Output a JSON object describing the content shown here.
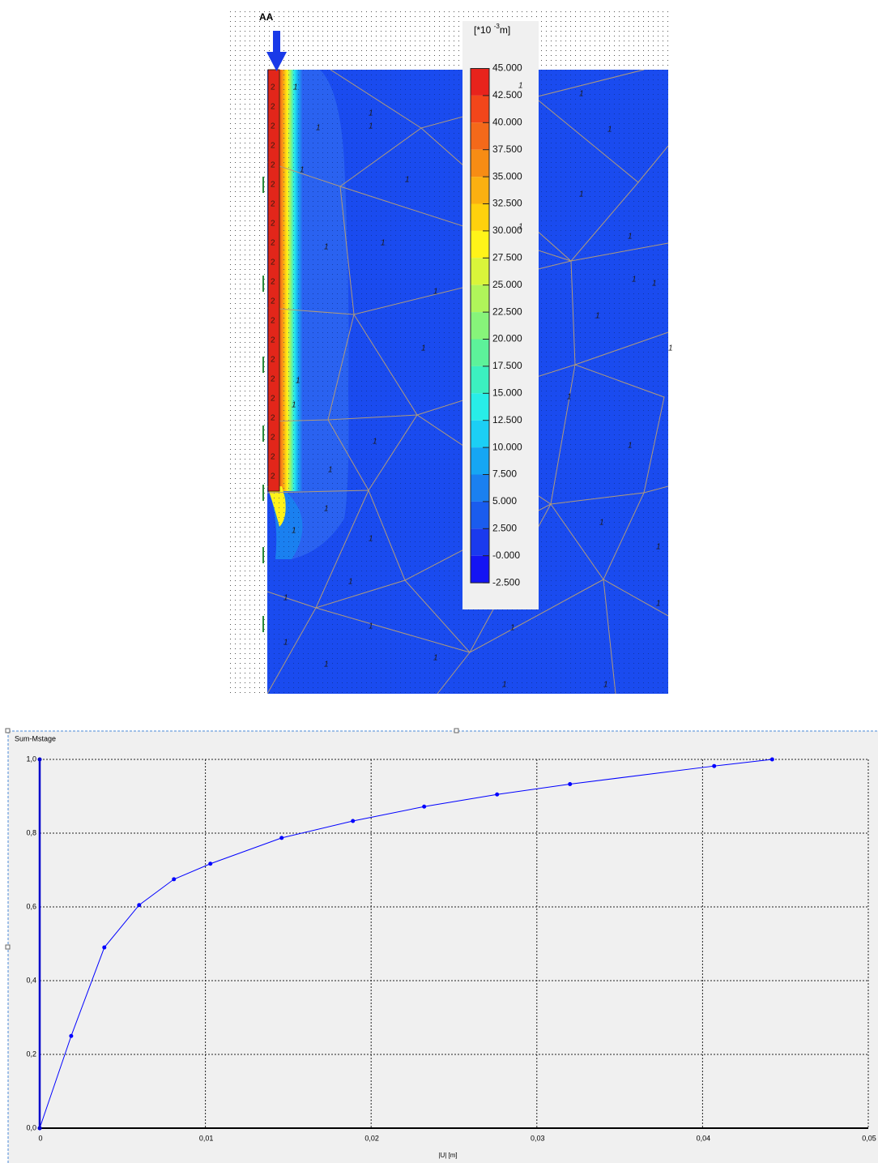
{
  "model_view": {
    "section_label": "AA",
    "soil_label": "1",
    "plate_label": "2",
    "legend": {
      "unit_prefix": "[*10",
      "unit_exponent": "-3",
      "unit_suffix": "m]",
      "levels": [
        {
          "value": 45,
          "label": "45.000"
        },
        {
          "value": 42.5,
          "label": "42.500"
        },
        {
          "value": 40,
          "label": "40.000"
        },
        {
          "value": 37.5,
          "label": "37.500"
        },
        {
          "value": 35,
          "label": "35.000"
        },
        {
          "value": 32.5,
          "label": "32.500"
        },
        {
          "value": 30,
          "label": "30.000"
        },
        {
          "value": 27.5,
          "label": "27.500"
        },
        {
          "value": 25,
          "label": "25.000"
        },
        {
          "value": 22.5,
          "label": "22.500"
        },
        {
          "value": 20,
          "label": "20.000"
        },
        {
          "value": 17.5,
          "label": "17.500"
        },
        {
          "value": 15,
          "label": "15.000"
        },
        {
          "value": 12.5,
          "label": "12.500"
        },
        {
          "value": 10,
          "label": "10.000"
        },
        {
          "value": 7.5,
          "label": "7.500"
        },
        {
          "value": 5,
          "label": "5.000"
        },
        {
          "value": 2.5,
          "label": "2.500"
        },
        {
          "value": 0,
          "label": "-0.000"
        },
        {
          "value": -2.5,
          "label": "-2.500"
        }
      ],
      "colors": [
        "#e8231c",
        "#f2461a",
        "#f4691a",
        "#f78c14",
        "#fbb011",
        "#ffd10d",
        "#fff319",
        "#d9f53a",
        "#b0f55a",
        "#87f47a",
        "#5df29a",
        "#3cf0c0",
        "#28eee8",
        "#1ccff5",
        "#16a6f3",
        "#1a80f0",
        "#1a5cee",
        "#1a3aee",
        "#1414f4"
      ]
    }
  },
  "chart_data": {
    "type": "line",
    "title": "Sum-Mstage",
    "x_label": "|U| [m]",
    "xlim": [
      0,
      0.05
    ],
    "ylim": [
      0,
      1
    ],
    "xticks": [
      {
        "value": 0,
        "label": "0"
      },
      {
        "value": 0.01,
        "label": "0,01"
      },
      {
        "value": 0.02,
        "label": "0,02"
      },
      {
        "value": 0.03,
        "label": "0,03"
      },
      {
        "value": 0.04,
        "label": "0,04"
      },
      {
        "value": 0.05,
        "label": "0,05"
      }
    ],
    "yticks": [
      {
        "value": 0,
        "label": "0,0"
      },
      {
        "value": 0.2,
        "label": "0,2"
      },
      {
        "value": 0.4,
        "label": "0,4"
      },
      {
        "value": 0.6,
        "label": "0,6"
      },
      {
        "value": 0.8,
        "label": "0,8"
      },
      {
        "value": 1,
        "label": "1,0"
      }
    ],
    "grid": true,
    "series": [
      {
        "color": "#0000ff",
        "x": [
          0,
          0.0019,
          0.0039,
          0.006,
          0.0081,
          0.0103,
          0.0146,
          0.0189,
          0.0232,
          0.0276,
          0.032,
          0.0407,
          0.0442
        ],
        "values": [
          0,
          0.25,
          0.49,
          0.605,
          0.675,
          0.717,
          0.787,
          0.833,
          0.872,
          0.905,
          0.933,
          0.982,
          1.0
        ]
      },
      {
        "color": "#0000cc",
        "x": [
          0,
          0
        ],
        "values": [
          0,
          1.0
        ]
      }
    ]
  }
}
